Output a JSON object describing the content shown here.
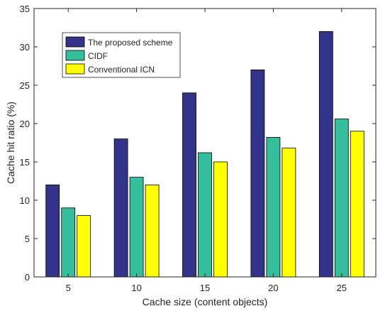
{
  "chart_data": {
    "type": "bar",
    "title": "",
    "xlabel": "Cache size (content objects)",
    "ylabel": "Cache hit ratio (%)",
    "categories": [
      "5",
      "10",
      "15",
      "20",
      "25"
    ],
    "ylim": [
      0,
      35
    ],
    "yticks": [
      0,
      5,
      10,
      15,
      20,
      25,
      30,
      35
    ],
    "grid": false,
    "legend_position": "top-left",
    "series": [
      {
        "name": "The proposed scheme",
        "color": "#33338a",
        "values": [
          12,
          18,
          24,
          27,
          32
        ]
      },
      {
        "name": "CIDF",
        "color": "#36bd9b",
        "values": [
          9,
          13,
          16.2,
          18.2,
          20.6
        ]
      },
      {
        "name": "Conventional ICN",
        "color": "#ffff00",
        "values": [
          8,
          12,
          15,
          16.8,
          19
        ]
      }
    ]
  }
}
